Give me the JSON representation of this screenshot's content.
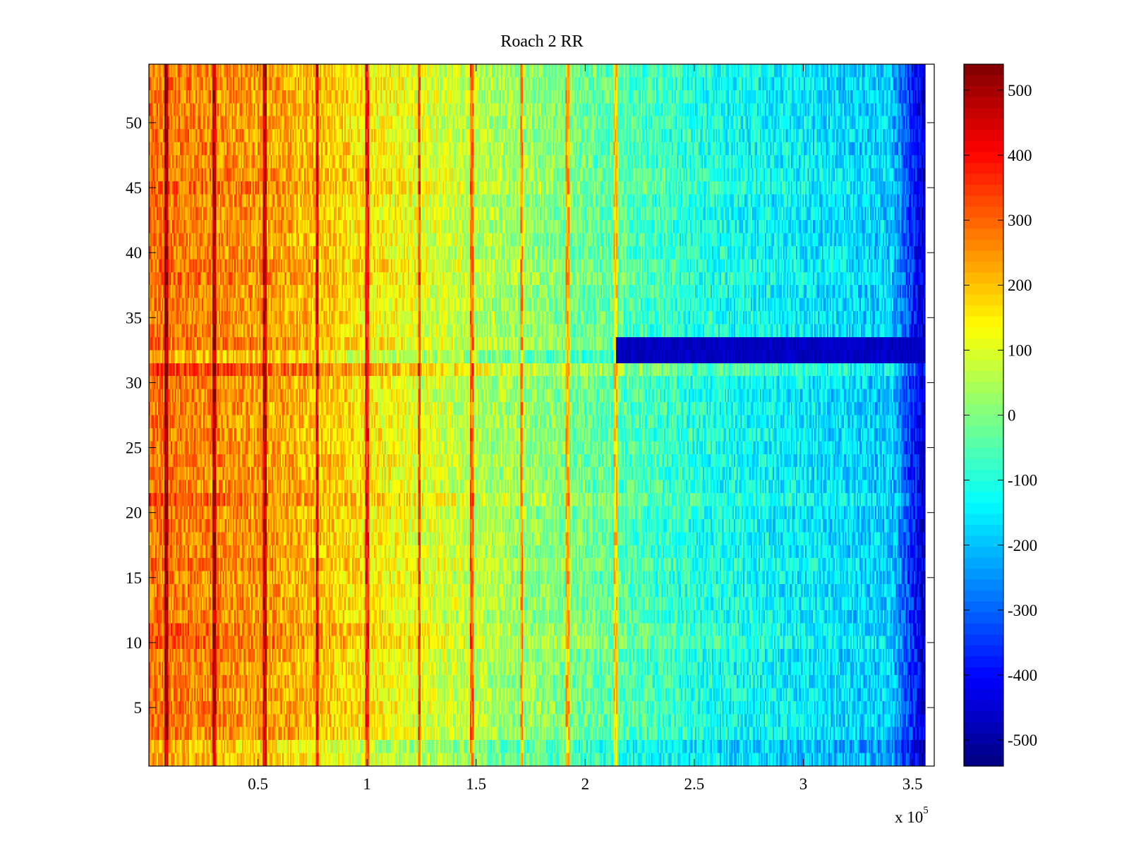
{
  "chart_data": {
    "type": "heatmap",
    "title": "Roach 2 RR",
    "xlabel": "",
    "ylabel": "",
    "x_exponent_label": "x 10",
    "x_exponent_power": "5",
    "xlim": [
      0,
      360000
    ],
    "ylim": [
      0.5,
      54.5
    ],
    "x_ticks": [
      50000,
      100000,
      150000,
      200000,
      250000,
      300000,
      350000
    ],
    "x_tick_labels": [
      "0.5",
      "1",
      "1.5",
      "2",
      "2.5",
      "3",
      "3.5"
    ],
    "y_ticks": [
      5,
      10,
      15,
      20,
      25,
      30,
      35,
      40,
      45,
      50
    ],
    "y_tick_labels": [
      "5",
      "10",
      "15",
      "20",
      "25",
      "30",
      "35",
      "40",
      "45",
      "50"
    ],
    "rows": 54,
    "data_x_extent": [
      0,
      356000
    ],
    "colormap": "jet",
    "clim": [
      -540,
      540
    ],
    "colorbar_ticks": [
      500,
      400,
      300,
      200,
      100,
      0,
      -100,
      -200,
      -300,
      -400,
      -500
    ],
    "colorbar_labels": [
      "500",
      "400",
      "300",
      "200",
      "100",
      "0",
      "-100",
      "-200",
      "-300",
      "-400",
      "-500"
    ],
    "trend": {
      "x_knots": [
        0,
        30000,
        60000,
        100000,
        150000,
        200000,
        250000,
        300000,
        340000,
        356000
      ],
      "values": [
        280,
        260,
        230,
        150,
        60,
        -20,
        -100,
        -150,
        -190,
        -470
      ],
      "row_offsets_note": "approximate per-row deviations",
      "row_offsets": {
        "1": -60,
        "2": -80,
        "10": 40,
        "11": 30,
        "16": 20,
        "21": 40,
        "31": 80,
        "32": -60,
        "33": 20,
        "38": 20,
        "39": 20,
        "45": 30,
        "46": 20
      },
      "bright_stripes_x": [
        8000,
        30000,
        53000,
        77000,
        100000,
        124000,
        148000,
        171000,
        192000,
        214000
      ]
    },
    "anomaly": {
      "rows": [
        32,
        33
      ],
      "x_start": 214000,
      "value": -470
    }
  }
}
